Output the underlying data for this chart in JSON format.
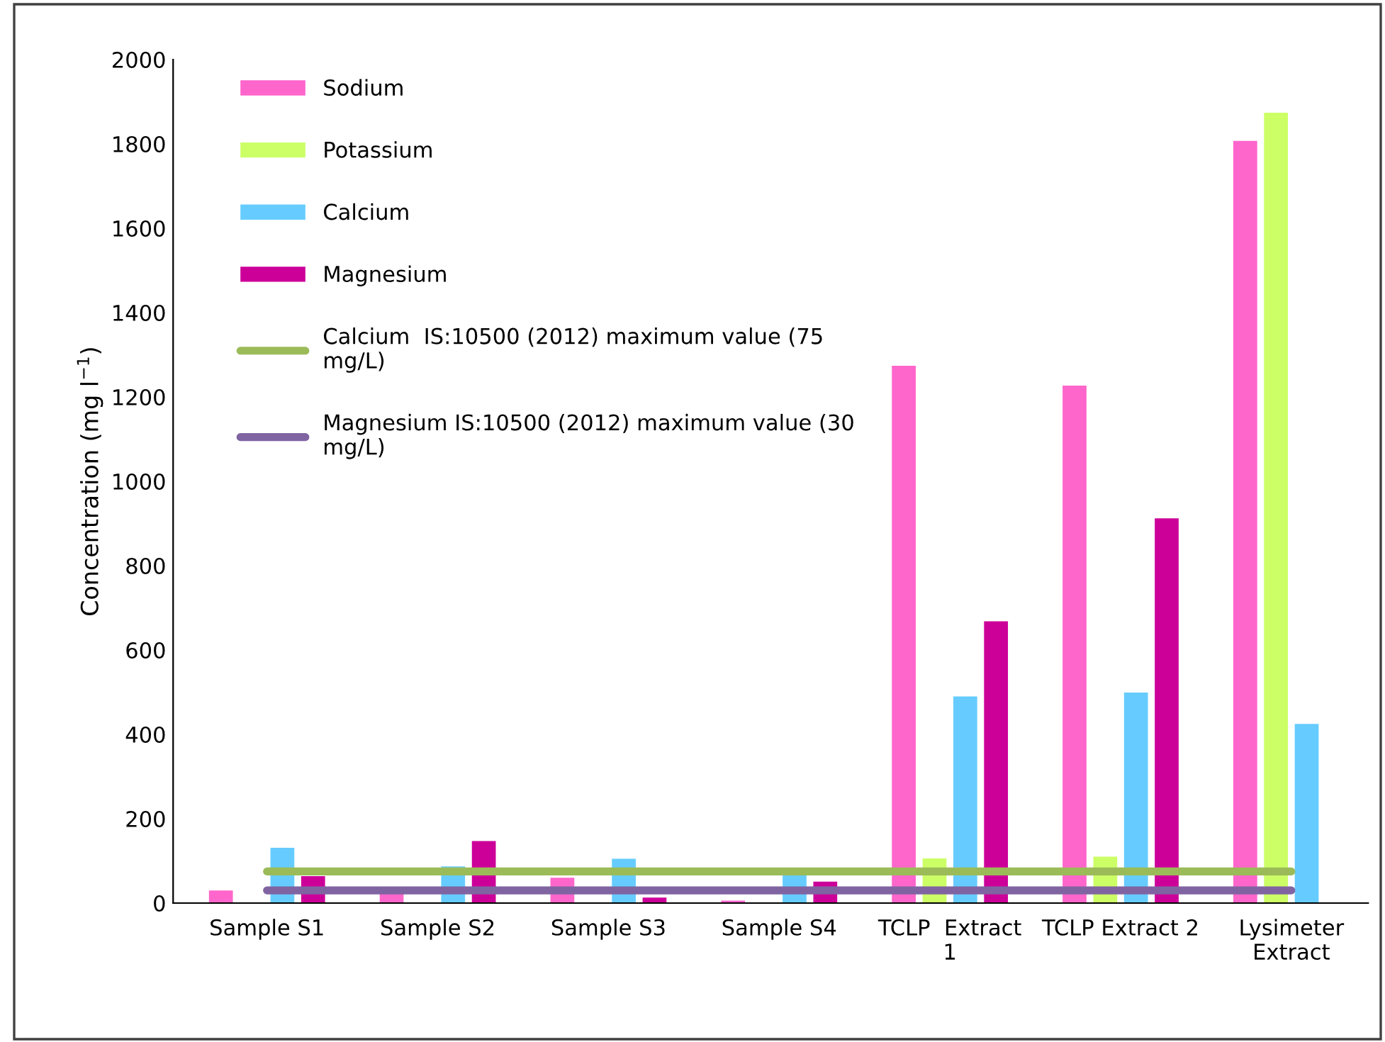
{
  "chart_data": {
    "type": "bar",
    "ylabel": "Concentration (mg l$^{−1}$)",
    "categories": [
      "Sample S1",
      "Sample S2",
      "Sample S3",
      "Sample S4",
      "TCLP  Extract\n1",
      "TCLP Extract 2",
      "Lysimeter\nExtract"
    ],
    "series": [
      {
        "name": "Sodium",
        "color": "#ff66cc",
        "values": [
          30,
          27,
          60,
          6,
          1274,
          1227,
          1807
        ]
      },
      {
        "name": "Potassium",
        "color": "#ccff66",
        "values": [
          null,
          null,
          null,
          null,
          106,
          110,
          1874
        ]
      },
      {
        "name": "Calcium",
        "color": "#66ccff",
        "values": [
          131,
          87,
          105,
          72,
          490,
          499,
          425
        ]
      },
      {
        "name": "Magnesium",
        "color": "#cc0099",
        "values": [
          64,
          147,
          13,
          51,
          668,
          912,
          null
        ]
      },
      {
        "name": "Calcium  IS:10500 (2012) maximum value (75\nmg/L)",
        "type": "line",
        "color": "#9bbb59",
        "values": [
          75,
          75,
          75,
          75,
          75,
          75,
          75
        ]
      },
      {
        "name": "Magnesium IS:10500 (2012) maximum value (30\nmg/L)",
        "type": "line",
        "color": "#8064a2",
        "values": [
          30,
          30,
          30,
          30,
          30,
          30,
          30
        ]
      }
    ],
    "ylim": [
      0,
      2000
    ],
    "yticks": [
      0,
      200,
      400,
      600,
      800,
      1000,
      1200,
      1400,
      1600,
      1800,
      2000
    ],
    "grid": false,
    "legend": "top left",
    "marker": "none"
  }
}
